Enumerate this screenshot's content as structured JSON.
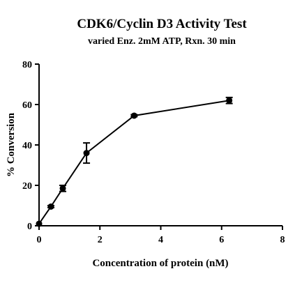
{
  "chart_data": {
    "type": "scatter",
    "title": "CDK6/Cyclin D3 Activity Test",
    "subtitle": "varied Enz. 2mM ATP, Rxn. 30 min",
    "xlabel": "Concentration of protein (nM)",
    "ylabel": "% Conversion",
    "xlim": [
      0,
      8
    ],
    "ylim": [
      0,
      80
    ],
    "xticks": [
      "0",
      "2",
      "4",
      "6",
      "8"
    ],
    "yticks": [
      "0",
      "20",
      "40",
      "60",
      "80"
    ],
    "grid": false,
    "legend": "none",
    "series": [
      {
        "x": [
          0,
          0.39,
          0.78,
          1.56,
          3.125,
          6.25
        ],
        "y": [
          1,
          9.5,
          18.5,
          36,
          54.5,
          62
        ],
        "error": [
          0,
          0.5,
          1.5,
          5,
          0.5,
          1.5
        ],
        "color": "#000000",
        "marker": "circle",
        "line": "solid"
      }
    ]
  }
}
